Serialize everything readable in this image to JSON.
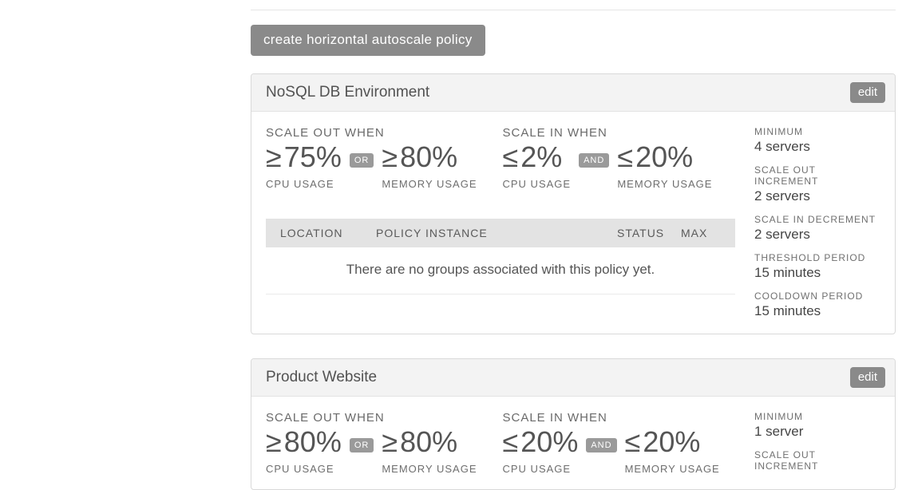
{
  "create_button_label": "create horizontal autoscale policy",
  "edit_button_label": "edit",
  "scale_out_label": "SCALE OUT WHEN",
  "scale_in_label": "SCALE IN WHEN",
  "cpu_usage_label": "CPU USAGE",
  "memory_usage_label": "MEMORY USAGE",
  "or_label": "OR",
  "and_label": "AND",
  "table": {
    "columns": {
      "location": "LOCATION",
      "instance": "POLICY INSTANCE",
      "status": "STATUS",
      "max": "MAX"
    },
    "empty_message": "There are no groups associated with this policy yet."
  },
  "side_labels": {
    "minimum": "MINIMUM",
    "scale_out_increment": "SCALE OUT INCREMENT",
    "scale_in_decrement": "SCALE IN DECREMENT",
    "threshold_period": "THRESHOLD PERIOD",
    "cooldown_period": "COOLDOWN PERIOD"
  },
  "policies": [
    {
      "title": "NoSQL DB Environment",
      "scale_out": {
        "cpu_operator": "≥",
        "cpu_value": "75%",
        "connector": "OR",
        "mem_operator": "≥",
        "mem_value": "80%"
      },
      "scale_in": {
        "cpu_operator": "≤",
        "cpu_value": "2%",
        "connector": "AND",
        "mem_operator": "≤",
        "mem_value": "20%"
      },
      "minimum": "4 servers",
      "scale_out_increment": "2 servers",
      "scale_in_decrement": "2 servers",
      "threshold_period": "15 minutes",
      "cooldown_period": "15 minutes"
    },
    {
      "title": "Product Website",
      "scale_out": {
        "cpu_operator": "≥",
        "cpu_value": "80%",
        "connector": "OR",
        "mem_operator": "≥",
        "mem_value": "80%"
      },
      "scale_in": {
        "cpu_operator": "≤",
        "cpu_value": "20%",
        "connector": "AND",
        "mem_operator": "≤",
        "mem_value": "20%"
      },
      "minimum": "1 server",
      "scale_out_increment": "",
      "scale_in_decrement": "",
      "threshold_period": "",
      "cooldown_period": ""
    }
  ],
  "colors": {
    "button_bg": "#8a8a8a",
    "panel_border": "#d9d9d9",
    "panel_header_bg": "#f3f3f3",
    "table_head_bg": "#e3e3e3",
    "text_primary": "#4a4a4a",
    "text_muted": "#6e6e6e"
  }
}
